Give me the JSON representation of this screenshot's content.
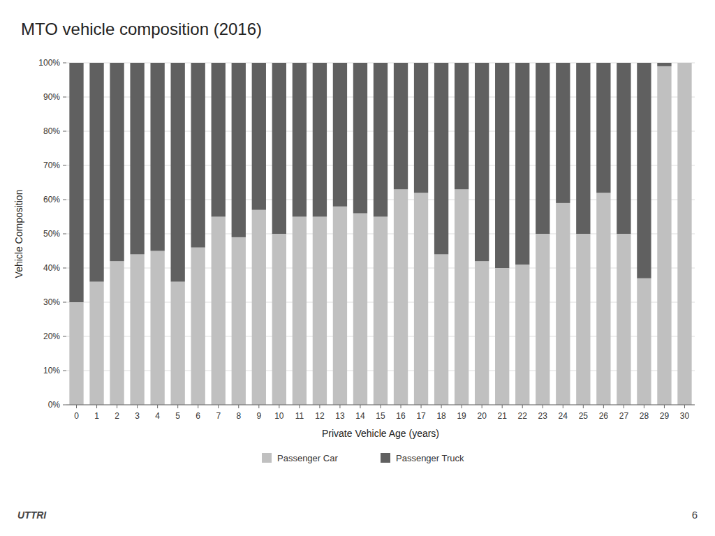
{
  "chart_data": {
    "type": "bar",
    "title": "MTO vehicle composition (2016)",
    "x_label": "Private Vehicle Age (years)",
    "y_label": "Vehicle Composition",
    "categories": [
      "0",
      "1",
      "2",
      "3",
      "4",
      "5",
      "6",
      "7",
      "8",
      "9",
      "10",
      "11",
      "12",
      "13",
      "14",
      "15",
      "16",
      "17",
      "18",
      "19",
      "20",
      "21",
      "22",
      "23",
      "24",
      "25",
      "26",
      "27",
      "28",
      "29",
      "30"
    ],
    "series": [
      {
        "name": "Passenger Car",
        "color": "#c0c0c0",
        "values": [
          0.3,
          0.36,
          0.42,
          0.44,
          0.45,
          0.36,
          0.46,
          0.55,
          0.49,
          0.57,
          0.5,
          0.55,
          0.55,
          0.58,
          0.56,
          0.55,
          0.63,
          0.62,
          0.44,
          0.63,
          0.42,
          0.4,
          0.41,
          0.5,
          0.59,
          0.5,
          0.62,
          0.5,
          0.37,
          0.99,
          1.0
        ]
      },
      {
        "name": "Passenger Truck",
        "color": "#606060",
        "values": [
          0.7,
          0.64,
          0.58,
          0.56,
          0.55,
          0.64,
          0.54,
          0.45,
          0.51,
          0.43,
          0.5,
          0.45,
          0.45,
          0.42,
          0.44,
          0.45,
          0.37,
          0.38,
          0.56,
          0.37,
          0.58,
          0.6,
          0.59,
          0.5,
          0.41,
          0.5,
          0.38,
          0.5,
          0.63,
          0.01,
          0.0
        ]
      }
    ],
    "stacked": true,
    "ylim": [
      0,
      1.0
    ],
    "yticks": [
      {
        "value": 0,
        "label": "0%"
      },
      {
        "value": 0.1,
        "label": "10%"
      },
      {
        "value": 0.2,
        "label": "20%"
      },
      {
        "value": 0.3,
        "label": "30%"
      },
      {
        "value": 0.4,
        "label": "40%"
      },
      {
        "value": 0.5,
        "label": "50%"
      },
      {
        "value": 0.6,
        "label": "60%"
      },
      {
        "value": 0.7,
        "label": "70%"
      },
      {
        "value": 0.8,
        "label": "80%"
      },
      {
        "value": 0.9,
        "label": "90%"
      },
      {
        "value": 1.0,
        "label": "100%"
      }
    ],
    "grid": true,
    "legend": "bottom",
    "annotations": [
      "UTTRI",
      "6"
    ]
  }
}
